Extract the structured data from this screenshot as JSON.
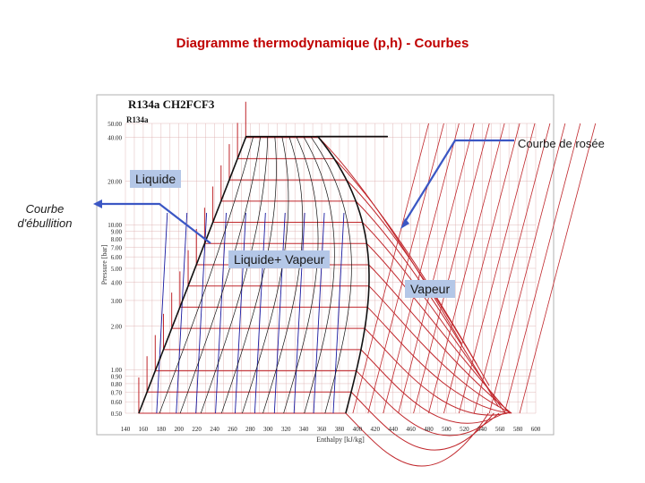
{
  "slide": {
    "title": "Diagramme thermodynamique (p,h)  - Courbes"
  },
  "chart": {
    "heading": "R134a    CH2FCF3",
    "sub_heading": "R134a",
    "xlabel": "Enthalpy [kJ/kg]",
    "ylabel": "Pressure [bar]",
    "x_ticks": [
      "140",
      "160",
      "180",
      "200",
      "220",
      "240",
      "260",
      "280",
      "300",
      "320",
      "340",
      "360",
      "380",
      "400",
      "420",
      "440",
      "460",
      "480",
      "500",
      "520",
      "540",
      "560",
      "580",
      "600"
    ],
    "y_ticks": [
      "50.00",
      "40.00",
      "20.00",
      "10.00",
      "9.00",
      "8.00",
      "7.00",
      "6.00",
      "5.00",
      "4.00",
      "3.00",
      "2.00",
      "1.00",
      "0.90",
      "0.80",
      "0.70",
      "0.60",
      "0.50"
    ],
    "colors": {
      "isotherm": "#c0262b",
      "isochore": "#1a1aa0",
      "saturation": "#111111",
      "grid": "#d9a8a8"
    }
  },
  "chart_data": {
    "type": "diagram",
    "x_range": [
      140,
      600
    ],
    "y_range_log": [
      0.5,
      50
    ],
    "y_scale": "log",
    "grid": true
  },
  "annotations": {
    "liquid": "Liquide",
    "mixture": "Liquide+ Vapeur",
    "vapor": "Vapeur",
    "dew_curve": "Courbe de rosée",
    "boiling_curve": "Courbe d'ébullition"
  }
}
